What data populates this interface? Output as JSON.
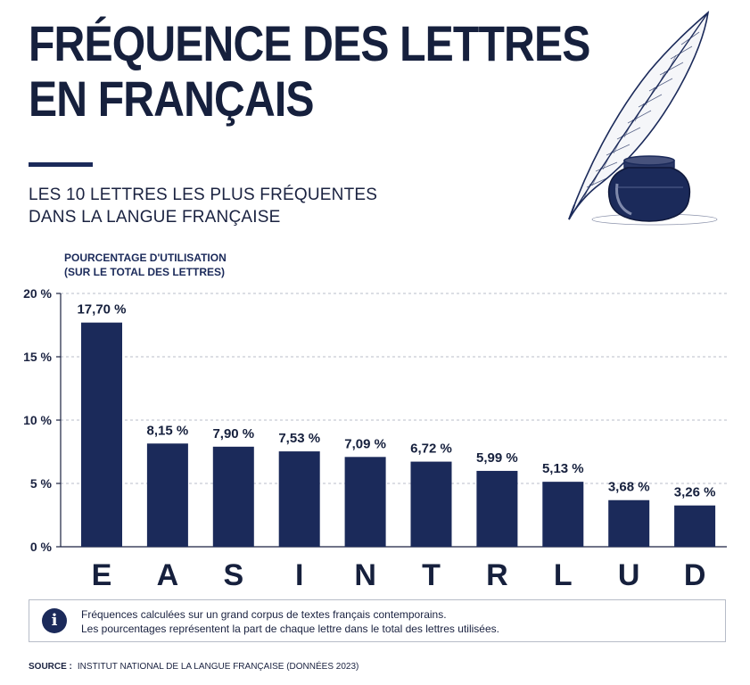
{
  "header": {
    "title_line1": "FRÉQUENCE DES LETTRES",
    "title_line2": "EN FRANÇAIS",
    "subtitle_line1": "LES 10 LETTRES LES PLUS FRÉQUENTES",
    "subtitle_line2": "DANS LA LANGUE FRANÇAISE",
    "illustration": "quill-and-inkwell-illustration"
  },
  "chart_data": {
    "type": "bar",
    "ylabel_line1": "POURCENTAGE D'UTILISATION",
    "ylabel_line2": "(SUR LE TOTAL DES LETTRES)",
    "categories": [
      "E",
      "A",
      "S",
      "I",
      "N",
      "T",
      "R",
      "L",
      "U",
      "D"
    ],
    "values": [
      17.7,
      8.15,
      7.9,
      7.53,
      7.09,
      6.72,
      5.99,
      5.13,
      3.68,
      3.26
    ],
    "value_labels": [
      "17,70 %",
      "8,15 %",
      "7,90 %",
      "7,53 %",
      "7,09 %",
      "6,72 %",
      "5,99 %",
      "5,13 %",
      "3,68 %",
      "3,26 %"
    ],
    "ylim": [
      0,
      20
    ],
    "yticks": [
      0,
      5,
      10,
      15,
      20
    ],
    "ytick_labels": [
      "0 %",
      "5 %",
      "10 %",
      "15 %",
      "20 %"
    ],
    "grid": "horizontal dashed",
    "bar_color": "#1b2a5a"
  },
  "info": {
    "icon": "info-icon",
    "icon_glyph": "i",
    "line1": "Fréquences calculées sur un grand corpus de textes français contemporains.",
    "line2": "Les pourcentages représentent la part de chaque lettre dans le total des lettres utilisées."
  },
  "source": {
    "label": "SOURCE :",
    "text": "INSTITUT NATIONAL DE LA LANGUE FRANÇAISE (DONNÉES 2023)"
  }
}
